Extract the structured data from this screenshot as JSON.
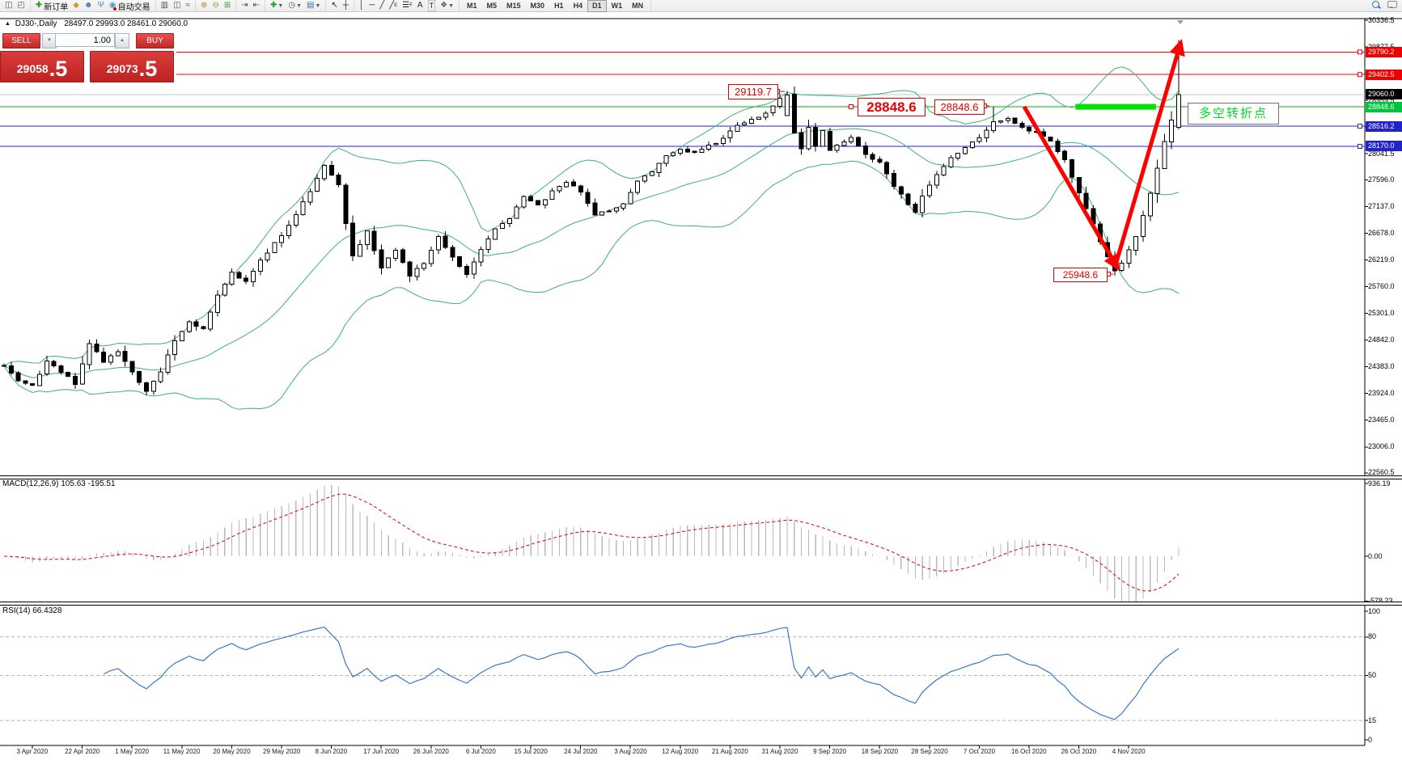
{
  "toolbar": {
    "new_order_label": "新订单",
    "autotrade_label": "自动交易",
    "timeframes": [
      "M1",
      "M5",
      "M15",
      "M30",
      "H1",
      "H4",
      "D1",
      "W1",
      "MN"
    ],
    "active_timeframe": "D1"
  },
  "symbol_info": {
    "title": "DJ30-,Daily",
    "ohlc": "28497.0 29993.0 28461.0 29060.0"
  },
  "trade_panel": {
    "sell_label": "SELL",
    "buy_label": "BUY",
    "volume": "1.00",
    "sell_price_main": "29058",
    "sell_price_frac": ".5",
    "buy_price_main": "29073",
    "buy_price_frac": ".5"
  },
  "price_axis": {
    "ticks": [
      "30336.5",
      "29877.5",
      "29418.5",
      "28959.5",
      "28500.5",
      "28041.5",
      "27596.0",
      "27137.0",
      "26678.0",
      "26219.0",
      "25760.0",
      "25301.0",
      "24842.0",
      "24383.0",
      "23924.0",
      "23465.0",
      "23006.0",
      "22560.5"
    ],
    "tick_values": [
      30336.5,
      29877.5,
      29418.5,
      28959.5,
      28500.5,
      28041.5,
      27596.0,
      27137.0,
      26678.0,
      26219.0,
      25760.0,
      25301.0,
      24842.0,
      24383.0,
      23924.0,
      23465.0,
      23006.0,
      22560.5
    ],
    "labels": [
      {
        "text": "29790.2",
        "value": 29790.2,
        "bg": "#ee0000",
        "marker": true
      },
      {
        "text": "29402.5",
        "value": 29402.5,
        "bg": "#ee0000",
        "marker": true
      },
      {
        "text": "29060.0",
        "value": 29060.0,
        "bg": "#000000",
        "marker": false
      },
      {
        "text": "28848.6",
        "value": 28848.6,
        "bg": "#00c43c",
        "marker": false
      },
      {
        "text": "28516.2",
        "value": 28516.2,
        "bg": "#2222cc",
        "marker": true
      },
      {
        "text": "28170.0",
        "value": 28170.0,
        "bg": "#2222cc",
        "marker": true
      }
    ]
  },
  "annotations": {
    "peak_price": "29119.7",
    "level_price_big": "28848.6",
    "level_price_small": "28848.6",
    "low_price": "25948.6",
    "turning_point": "多空转折点"
  },
  "macd_panel": {
    "label": "MACD(12,26,9) 105.63 -195.51",
    "ticks": [
      "936.19",
      "0.00",
      "-578.23"
    ],
    "tick_values": [
      936.19,
      0.0,
      -578.23
    ]
  },
  "rsi_panel": {
    "label": "RSI(14) 66.4328",
    "ticks": [
      "100",
      "80",
      "50",
      "15",
      "0"
    ],
    "tick_values": [
      100,
      80,
      50,
      15,
      0
    ],
    "levels": [
      80,
      50,
      15
    ]
  },
  "date_axis": {
    "labels": [
      "3 Apr 2020",
      "22 Apr 2020",
      "1 May 2020",
      "11 May 2020",
      "20 May 2020",
      "29 May 2020",
      "8 Jun 2020",
      "17 Jun 2020",
      "26 Jun 2020",
      "6 Jul 2020",
      "15 Jul 2020",
      "24 Jul 2020",
      "3 Aug 2020",
      "12 Aug 2020",
      "21 Aug 2020",
      "31 Aug 2020",
      "9 Sep 2020",
      "18 Sep 2020",
      "28 Sep 2020",
      "7 Oct 2020",
      "16 Oct 2020",
      "26 Oct 2020",
      "4 Nov 2020"
    ]
  },
  "chart_data": {
    "type": "candlestick",
    "symbol": "DJ30",
    "period": "Daily",
    "bars": 166,
    "price_range_top": 30336.5,
    "price_range_bottom": 22560.5,
    "current_price": 29060.0,
    "close_path": [
      [
        0,
        24400
      ],
      [
        2,
        24150
      ],
      [
        4,
        24050
      ],
      [
        6,
        24500
      ],
      [
        8,
        24300
      ],
      [
        10,
        24100
      ],
      [
        12,
        24800
      ],
      [
        14,
        24450
      ],
      [
        16,
        24650
      ],
      [
        18,
        24300
      ],
      [
        20,
        23950
      ],
      [
        22,
        24300
      ],
      [
        24,
        24850
      ],
      [
        26,
        25150
      ],
      [
        28,
        25050
      ],
      [
        30,
        25600
      ],
      [
        32,
        26000
      ],
      [
        34,
        25850
      ],
      [
        36,
        26200
      ],
      [
        38,
        26500
      ],
      [
        40,
        26800
      ],
      [
        42,
        27200
      ],
      [
        44,
        27600
      ],
      [
        45,
        27850
      ],
      [
        47,
        27500
      ],
      [
        48,
        26850
      ],
      [
        49,
        26300
      ],
      [
        51,
        26700
      ],
      [
        53,
        26100
      ],
      [
        55,
        26400
      ],
      [
        57,
        25950
      ],
      [
        59,
        26150
      ],
      [
        61,
        26600
      ],
      [
        63,
        26250
      ],
      [
        65,
        25950
      ],
      [
        67,
        26400
      ],
      [
        69,
        26750
      ],
      [
        71,
        26950
      ],
      [
        73,
        27300
      ],
      [
        75,
        27150
      ],
      [
        77,
        27400
      ],
      [
        79,
        27550
      ],
      [
        81,
        27400
      ],
      [
        83,
        27000
      ],
      [
        85,
        27050
      ],
      [
        87,
        27200
      ],
      [
        89,
        27550
      ],
      [
        91,
        27750
      ],
      [
        93,
        28000
      ],
      [
        95,
        28120
      ],
      [
        97,
        28060
      ],
      [
        99,
        28180
      ],
      [
        101,
        28300
      ],
      [
        103,
        28520
      ],
      [
        105,
        28620
      ],
      [
        107,
        28750
      ],
      [
        109,
        28980
      ],
      [
        110,
        29060
      ],
      [
        111,
        28400
      ],
      [
        112,
        28120
      ],
      [
        113,
        28500
      ],
      [
        114,
        28160
      ],
      [
        115,
        28420
      ],
      [
        116,
        28080
      ],
      [
        117,
        28180
      ],
      [
        119,
        28320
      ],
      [
        121,
        28020
      ],
      [
        123,
        27880
      ],
      [
        125,
        27480
      ],
      [
        127,
        27180
      ],
      [
        128,
        27020
      ],
      [
        129,
        27320
      ],
      [
        131,
        27680
      ],
      [
        133,
        27980
      ],
      [
        135,
        28160
      ],
      [
        137,
        28320
      ],
      [
        139,
        28600
      ],
      [
        141,
        28650
      ],
      [
        143,
        28480
      ],
      [
        145,
        28400
      ],
      [
        147,
        28260
      ],
      [
        149,
        27920
      ],
      [
        151,
        27380
      ],
      [
        153,
        26820
      ],
      [
        155,
        26280
      ],
      [
        156,
        26050
      ],
      [
        157,
        26150
      ],
      [
        159,
        26600
      ],
      [
        161,
        27350
      ],
      [
        163,
        28250
      ],
      [
        164,
        28600
      ],
      [
        165,
        29060
      ]
    ],
    "key_bars": [
      {
        "i": 110,
        "open": 28700,
        "high": 29119.7
      },
      {
        "i": 139,
        "high": 28848.6
      },
      {
        "i": 156,
        "low": 25948.6
      },
      {
        "i": 165,
        "open": 28497.0,
        "high": 29993.0,
        "low": 28461.0,
        "close": 29060.0
      }
    ],
    "horizontal_lines": [
      {
        "price": 29790.2,
        "color": "#ff0000",
        "width": 1
      },
      {
        "price": 29402.5,
        "color": "#ff0000",
        "width": 1
      },
      {
        "price": 29060.0,
        "color": "#c4c4c4",
        "width": 1
      },
      {
        "price": 28848.6,
        "color": "#00b400",
        "width": 1
      },
      {
        "price": 28516.2,
        "color": "#2222cc",
        "width": 1
      },
      {
        "price": 28170.0,
        "color": "#2222cc",
        "width": 1
      }
    ],
    "highlight_band": {
      "price": 28848.6,
      "from_bar": 150.5,
      "to_bar": 161.8,
      "color": "#00e400",
      "thickness": 7
    },
    "arrows": [
      {
        "from_bar": 143.3,
        "from_price": 28850,
        "to_bar": 156.4,
        "to_price": 26080,
        "color": "#ff0000",
        "width": 5
      },
      {
        "from_bar": 156.1,
        "from_price": 26120,
        "to_bar": 165.3,
        "to_price": 29960,
        "color": "#ff0000",
        "width": 5
      }
    ],
    "bollinger": {
      "period": 20,
      "deviation": 2,
      "color": "#3CB371"
    },
    "macd": {
      "fast": 12,
      "slow": 26,
      "signal_period": 9,
      "main_value": 105.63,
      "signal_value": -195.51
    },
    "rsi": {
      "period": 14,
      "value": 66.4328
    }
  }
}
